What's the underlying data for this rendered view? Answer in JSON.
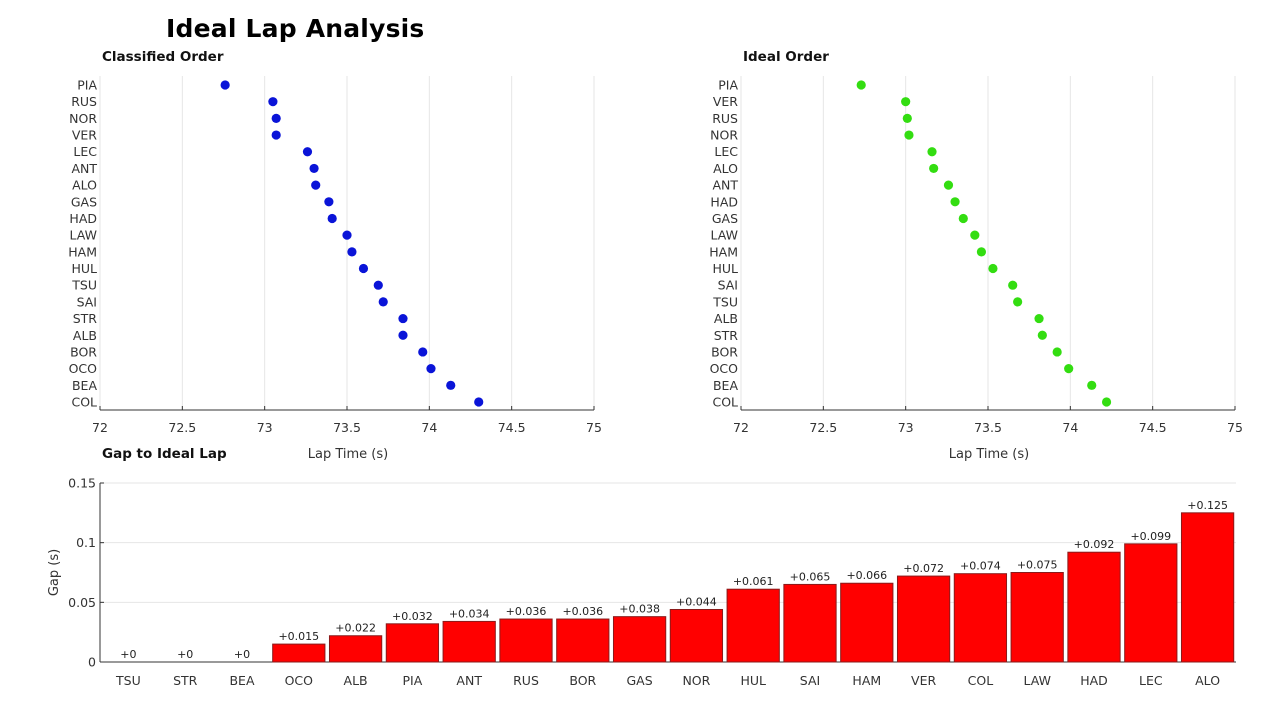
{
  "title": "Ideal Lap Analysis",
  "chart_data": [
    {
      "type": "scatter",
      "title": "Classified Order",
      "xlabel": "Lap Time (s)",
      "ylabel": "",
      "xlim": [
        72,
        75
      ],
      "xticks": [
        "72",
        "72.5",
        "73",
        "73.5",
        "74",
        "74.5",
        "75"
      ],
      "grid": "x",
      "color": "#0a14d8",
      "categories": [
        "PIA",
        "RUS",
        "NOR",
        "VER",
        "LEC",
        "ANT",
        "ALO",
        "GAS",
        "HAD",
        "LAW",
        "HAM",
        "HUL",
        "TSU",
        "SAI",
        "STR",
        "ALB",
        "BOR",
        "OCO",
        "BEA",
        "COL"
      ],
      "values": [
        72.76,
        73.05,
        73.07,
        73.07,
        73.26,
        73.3,
        73.31,
        73.39,
        73.41,
        73.5,
        73.53,
        73.6,
        73.69,
        73.72,
        73.84,
        73.84,
        73.96,
        74.01,
        74.13,
        74.3
      ]
    },
    {
      "type": "scatter",
      "title": "Ideal Order",
      "xlabel": "Lap Time (s)",
      "ylabel": "",
      "xlim": [
        72,
        75
      ],
      "xticks": [
        "72",
        "72.5",
        "73",
        "73.5",
        "74",
        "74.5",
        "75"
      ],
      "grid": "x",
      "color": "#33dd11",
      "categories": [
        "PIA",
        "VER",
        "RUS",
        "NOR",
        "LEC",
        "ALO",
        "ANT",
        "HAD",
        "GAS",
        "LAW",
        "HAM",
        "HUL",
        "SAI",
        "TSU",
        "ALB",
        "STR",
        "BOR",
        "OCO",
        "BEA",
        "COL"
      ],
      "values": [
        72.73,
        73.0,
        73.01,
        73.02,
        73.16,
        73.17,
        73.26,
        73.3,
        73.35,
        73.42,
        73.46,
        73.53,
        73.65,
        73.68,
        73.81,
        73.83,
        73.92,
        73.99,
        74.13,
        74.22
      ]
    },
    {
      "type": "bar",
      "title": "Gap to Ideal Lap",
      "xlabel": "",
      "ylabel": "Gap (s)",
      "ylim": [
        0,
        0.15
      ],
      "yticks": [
        "0",
        "0.05",
        "0.1",
        "0.15"
      ],
      "grid": "y",
      "color": "#ff0000",
      "categories": [
        "TSU",
        "STR",
        "BEA",
        "OCO",
        "ALB",
        "PIA",
        "ANT",
        "RUS",
        "BOR",
        "GAS",
        "NOR",
        "HUL",
        "SAI",
        "HAM",
        "VER",
        "COL",
        "LAW",
        "HAD",
        "LEC",
        "ALO"
      ],
      "values": [
        0,
        0,
        0,
        0.015,
        0.022,
        0.032,
        0.034,
        0.036,
        0.036,
        0.038,
        0.044,
        0.061,
        0.065,
        0.066,
        0.072,
        0.074,
        0.075,
        0.092,
        0.099,
        0.125
      ],
      "labels": [
        "+0",
        "+0",
        "+0",
        "+0.015",
        "+0.022",
        "+0.032",
        "+0.034",
        "+0.036",
        "+0.036",
        "+0.038",
        "+0.044",
        "+0.061",
        "+0.065",
        "+0.066",
        "+0.072",
        "+0.074",
        "+0.075",
        "+0.092",
        "+0.099",
        "+0.125"
      ]
    }
  ]
}
